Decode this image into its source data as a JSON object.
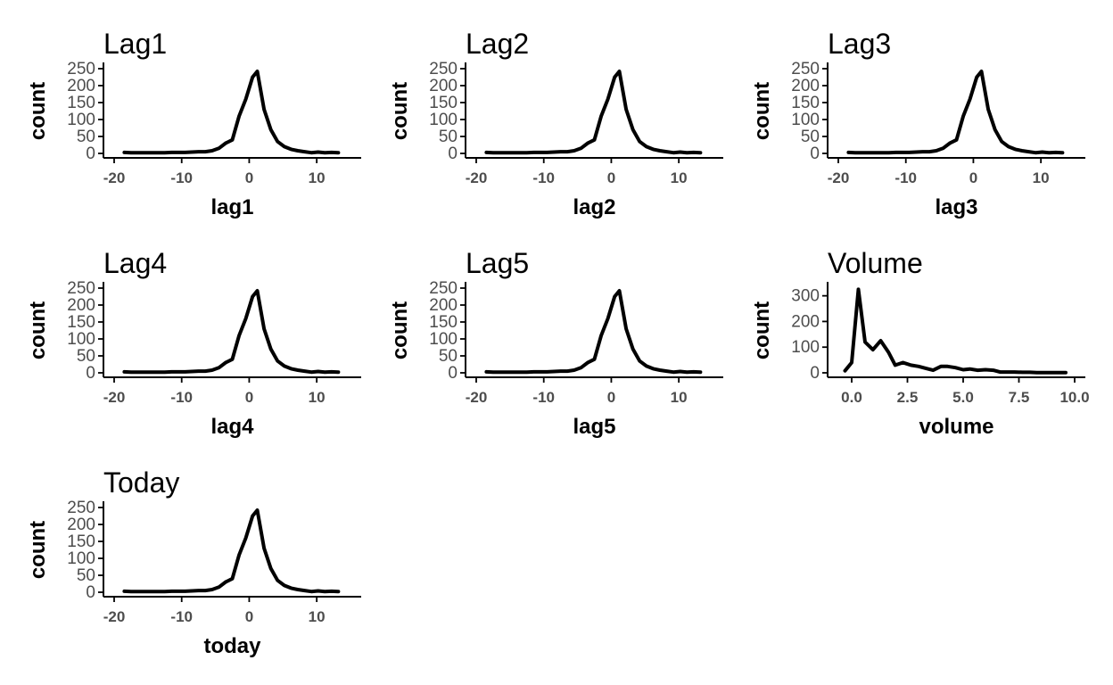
{
  "chart_data": [
    {
      "type": "line",
      "title": "Lag1",
      "xlabel": "lag1",
      "ylabel": "count",
      "xlim": [
        -20,
        15
      ],
      "ylim": [
        0,
        250
      ],
      "xticks": [
        -20,
        -10,
        0,
        10
      ],
      "xtick_labels": [
        "-20",
        "-10",
        "0",
        "10"
      ],
      "yticks": [
        0,
        50,
        100,
        150,
        200,
        250
      ],
      "ytick_labels": [
        "0",
        "50",
        "100",
        "150",
        "200",
        "250"
      ],
      "grid": false,
      "series": [
        {
          "x": [
            -18.5,
            -17.5,
            -16.5,
            -15.5,
            -14.5,
            -13.5,
            -12.5,
            -11.5,
            -10.5,
            -9.5,
            -8.5,
            -7.5,
            -6.5,
            -5.5,
            -4.5,
            -3.5,
            -2.5,
            -1.5,
            -0.5,
            0.5,
            1.2,
            2.2,
            3.2,
            4.2,
            5.2,
            6.2,
            7.2,
            8.2,
            9.2,
            10.2,
            11.2,
            12.2,
            13.2
          ],
          "y": [
            3,
            2,
            2,
            2,
            2,
            2,
            2,
            3,
            3,
            3,
            4,
            5,
            5,
            8,
            15,
            30,
            40,
            110,
            160,
            225,
            242,
            130,
            70,
            35,
            20,
            12,
            8,
            5,
            2,
            4,
            2,
            3,
            2
          ]
        }
      ]
    },
    {
      "type": "line",
      "title": "Lag2",
      "xlabel": "lag2",
      "ylabel": "count",
      "xlim": [
        -20,
        15
      ],
      "ylim": [
        0,
        250
      ],
      "xticks": [
        -20,
        -10,
        0,
        10
      ],
      "xtick_labels": [
        "-20",
        "-10",
        "0",
        "10"
      ],
      "yticks": [
        0,
        50,
        100,
        150,
        200,
        250
      ],
      "ytick_labels": [
        "0",
        "50",
        "100",
        "150",
        "200",
        "250"
      ],
      "grid": false,
      "series": [
        {
          "x": [
            -18.5,
            -17.5,
            -16.5,
            -15.5,
            -14.5,
            -13.5,
            -12.5,
            -11.5,
            -10.5,
            -9.5,
            -8.5,
            -7.5,
            -6.5,
            -5.5,
            -4.5,
            -3.5,
            -2.5,
            -1.5,
            -0.5,
            0.5,
            1.2,
            2.2,
            3.2,
            4.2,
            5.2,
            6.2,
            7.2,
            8.2,
            9.2,
            10.2,
            11.2,
            12.2,
            13.2
          ],
          "y": [
            3,
            2,
            2,
            2,
            2,
            2,
            2,
            3,
            3,
            3,
            4,
            5,
            5,
            8,
            15,
            30,
            40,
            110,
            160,
            225,
            242,
            130,
            70,
            35,
            20,
            12,
            8,
            5,
            2,
            4,
            2,
            3,
            2
          ]
        }
      ]
    },
    {
      "type": "line",
      "title": "Lag3",
      "xlabel": "lag3",
      "ylabel": "count",
      "xlim": [
        -20,
        15
      ],
      "ylim": [
        0,
        250
      ],
      "xticks": [
        -20,
        -10,
        0,
        10
      ],
      "xtick_labels": [
        "-20",
        "-10",
        "0",
        "10"
      ],
      "yticks": [
        0,
        50,
        100,
        150,
        200,
        250
      ],
      "ytick_labels": [
        "0",
        "50",
        "100",
        "150",
        "200",
        "250"
      ],
      "grid": false,
      "series": [
        {
          "x": [
            -18.5,
            -17.5,
            -16.5,
            -15.5,
            -14.5,
            -13.5,
            -12.5,
            -11.5,
            -10.5,
            -9.5,
            -8.5,
            -7.5,
            -6.5,
            -5.5,
            -4.5,
            -3.5,
            -2.5,
            -1.5,
            -0.5,
            0.5,
            1.2,
            2.2,
            3.2,
            4.2,
            5.2,
            6.2,
            7.2,
            8.2,
            9.2,
            10.2,
            11.2,
            12.2,
            13.2
          ],
          "y": [
            3,
            2,
            2,
            2,
            2,
            2,
            2,
            3,
            3,
            3,
            4,
            5,
            5,
            8,
            15,
            30,
            40,
            110,
            160,
            225,
            242,
            130,
            70,
            35,
            20,
            12,
            8,
            5,
            2,
            4,
            2,
            3,
            2
          ]
        }
      ]
    },
    {
      "type": "line",
      "title": "Lag4",
      "xlabel": "lag4",
      "ylabel": "count",
      "xlim": [
        -20,
        15
      ],
      "ylim": [
        0,
        250
      ],
      "xticks": [
        -20,
        -10,
        0,
        10
      ],
      "xtick_labels": [
        "-20",
        "-10",
        "0",
        "10"
      ],
      "yticks": [
        0,
        50,
        100,
        150,
        200,
        250
      ],
      "ytick_labels": [
        "0",
        "50",
        "100",
        "150",
        "200",
        "250"
      ],
      "grid": false,
      "series": [
        {
          "x": [
            -18.5,
            -17.5,
            -16.5,
            -15.5,
            -14.5,
            -13.5,
            -12.5,
            -11.5,
            -10.5,
            -9.5,
            -8.5,
            -7.5,
            -6.5,
            -5.5,
            -4.5,
            -3.5,
            -2.5,
            -1.5,
            -0.5,
            0.5,
            1.2,
            2.2,
            3.2,
            4.2,
            5.2,
            6.2,
            7.2,
            8.2,
            9.2,
            10.2,
            11.2,
            12.2,
            13.2
          ],
          "y": [
            3,
            2,
            2,
            2,
            2,
            2,
            2,
            3,
            3,
            3,
            4,
            5,
            5,
            8,
            15,
            30,
            40,
            110,
            160,
            225,
            242,
            130,
            70,
            35,
            20,
            12,
            8,
            5,
            2,
            4,
            2,
            3,
            2
          ]
        }
      ]
    },
    {
      "type": "line",
      "title": "Lag5",
      "xlabel": "lag5",
      "ylabel": "count",
      "xlim": [
        -20,
        15
      ],
      "ylim": [
        0,
        250
      ],
      "xticks": [
        -20,
        -10,
        0,
        10
      ],
      "xtick_labels": [
        "-20",
        "-10",
        "0",
        "10"
      ],
      "yticks": [
        0,
        50,
        100,
        150,
        200,
        250
      ],
      "ytick_labels": [
        "0",
        "50",
        "100",
        "150",
        "200",
        "250"
      ],
      "grid": false,
      "series": [
        {
          "x": [
            -18.5,
            -17.5,
            -16.5,
            -15.5,
            -14.5,
            -13.5,
            -12.5,
            -11.5,
            -10.5,
            -9.5,
            -8.5,
            -7.5,
            -6.5,
            -5.5,
            -4.5,
            -3.5,
            -2.5,
            -1.5,
            -0.5,
            0.5,
            1.2,
            2.2,
            3.2,
            4.2,
            5.2,
            6.2,
            7.2,
            8.2,
            9.2,
            10.2,
            11.2,
            12.2,
            13.2
          ],
          "y": [
            3,
            2,
            2,
            2,
            2,
            2,
            2,
            3,
            3,
            3,
            4,
            5,
            5,
            8,
            15,
            30,
            40,
            110,
            160,
            225,
            242,
            130,
            70,
            35,
            20,
            12,
            8,
            5,
            2,
            4,
            2,
            3,
            2
          ]
        }
      ]
    },
    {
      "type": "line",
      "title": "Volume",
      "xlabel": "volume",
      "ylabel": "count",
      "xlim": [
        -0.6,
        10.0
      ],
      "ylim": [
        0,
        330
      ],
      "xticks": [
        0,
        2.5,
        5,
        7.5,
        10
      ],
      "xtick_labels": [
        "0.0",
        "2.5",
        "5.0",
        "7.5",
        "10.0"
      ],
      "yticks": [
        0,
        100,
        200,
        300
      ],
      "ytick_labels": [
        "0",
        "100",
        "200",
        "300"
      ],
      "grid": false,
      "series": [
        {
          "x": [
            -0.3,
            0.0,
            0.3,
            0.6,
            0.95,
            1.3,
            1.65,
            1.95,
            2.3,
            2.65,
            3.0,
            3.3,
            3.65,
            4.0,
            4.3,
            4.65,
            5.0,
            5.3,
            5.65,
            6.0,
            6.35,
            6.65,
            7.0,
            7.3,
            7.65,
            8.0,
            8.3,
            8.65,
            9.0,
            9.3,
            9.6
          ],
          "y": [
            8,
            40,
            325,
            120,
            90,
            125,
            80,
            30,
            40,
            30,
            25,
            18,
            10,
            25,
            25,
            20,
            12,
            15,
            10,
            12,
            10,
            3,
            3,
            3,
            2,
            2,
            1,
            1,
            1,
            1,
            1
          ]
        }
      ]
    },
    {
      "type": "line",
      "title": "Today",
      "xlabel": "today",
      "ylabel": "count",
      "xlim": [
        -20,
        15
      ],
      "ylim": [
        0,
        250
      ],
      "xticks": [
        -20,
        -10,
        0,
        10
      ],
      "xtick_labels": [
        "-20",
        "-10",
        "0",
        "10"
      ],
      "yticks": [
        0,
        50,
        100,
        150,
        200,
        250
      ],
      "ytick_labels": [
        "0",
        "50",
        "100",
        "150",
        "200",
        "250"
      ],
      "grid": false,
      "series": [
        {
          "x": [
            -18.5,
            -17.5,
            -16.5,
            -15.5,
            -14.5,
            -13.5,
            -12.5,
            -11.5,
            -10.5,
            -9.5,
            -8.5,
            -7.5,
            -6.5,
            -5.5,
            -4.5,
            -3.5,
            -2.5,
            -1.5,
            -0.5,
            0.5,
            1.2,
            2.2,
            3.2,
            4.2,
            5.2,
            6.2,
            7.2,
            8.2,
            9.2,
            10.2,
            11.2,
            12.2,
            13.2
          ],
          "y": [
            3,
            2,
            2,
            2,
            2,
            2,
            2,
            3,
            3,
            3,
            4,
            5,
            5,
            8,
            15,
            30,
            40,
            110,
            160,
            225,
            242,
            130,
            70,
            35,
            20,
            12,
            8,
            5,
            2,
            4,
            2,
            3,
            2
          ]
        }
      ]
    }
  ]
}
